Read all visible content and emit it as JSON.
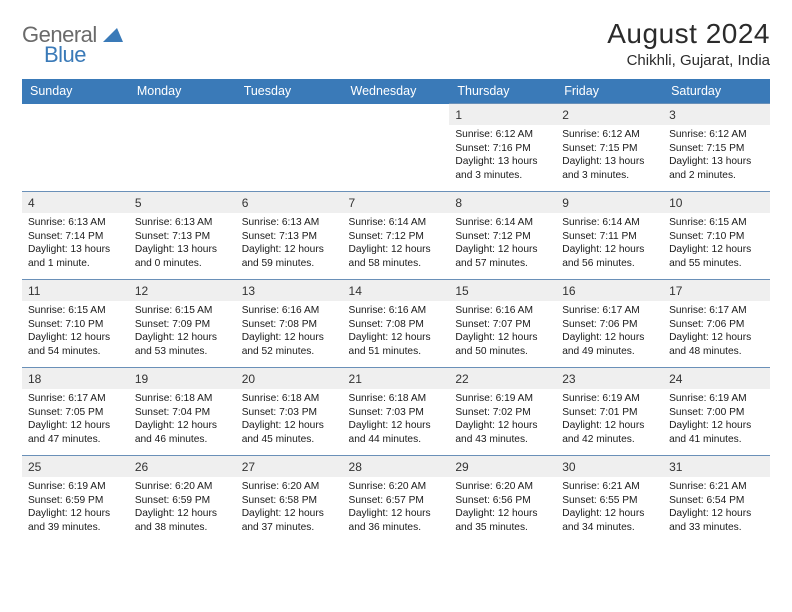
{
  "logo": {
    "general": "General",
    "blue": "Blue"
  },
  "title": "August 2024",
  "location": "Chikhli, Gujarat, India",
  "colors": {
    "header_bg": "#3a7ab8",
    "header_text": "#ffffff",
    "border": "#6a90b8",
    "daynum_bg": "#efefef",
    "logo_gray": "#6a6a6a",
    "logo_blue": "#3a7ab8"
  },
  "day_names": [
    "Sunday",
    "Monday",
    "Tuesday",
    "Wednesday",
    "Thursday",
    "Friday",
    "Saturday"
  ],
  "weeks": [
    [
      null,
      null,
      null,
      null,
      {
        "n": "1",
        "sr": "6:12 AM",
        "ss": "7:16 PM",
        "dl": "13 hours and 3 minutes."
      },
      {
        "n": "2",
        "sr": "6:12 AM",
        "ss": "7:15 PM",
        "dl": "13 hours and 3 minutes."
      },
      {
        "n": "3",
        "sr": "6:12 AM",
        "ss": "7:15 PM",
        "dl": "13 hours and 2 minutes."
      }
    ],
    [
      {
        "n": "4",
        "sr": "6:13 AM",
        "ss": "7:14 PM",
        "dl": "13 hours and 1 minute."
      },
      {
        "n": "5",
        "sr": "6:13 AM",
        "ss": "7:13 PM",
        "dl": "13 hours and 0 minutes."
      },
      {
        "n": "6",
        "sr": "6:13 AM",
        "ss": "7:13 PM",
        "dl": "12 hours and 59 minutes."
      },
      {
        "n": "7",
        "sr": "6:14 AM",
        "ss": "7:12 PM",
        "dl": "12 hours and 58 minutes."
      },
      {
        "n": "8",
        "sr": "6:14 AM",
        "ss": "7:12 PM",
        "dl": "12 hours and 57 minutes."
      },
      {
        "n": "9",
        "sr": "6:14 AM",
        "ss": "7:11 PM",
        "dl": "12 hours and 56 minutes."
      },
      {
        "n": "10",
        "sr": "6:15 AM",
        "ss": "7:10 PM",
        "dl": "12 hours and 55 minutes."
      }
    ],
    [
      {
        "n": "11",
        "sr": "6:15 AM",
        "ss": "7:10 PM",
        "dl": "12 hours and 54 minutes."
      },
      {
        "n": "12",
        "sr": "6:15 AM",
        "ss": "7:09 PM",
        "dl": "12 hours and 53 minutes."
      },
      {
        "n": "13",
        "sr": "6:16 AM",
        "ss": "7:08 PM",
        "dl": "12 hours and 52 minutes."
      },
      {
        "n": "14",
        "sr": "6:16 AM",
        "ss": "7:08 PM",
        "dl": "12 hours and 51 minutes."
      },
      {
        "n": "15",
        "sr": "6:16 AM",
        "ss": "7:07 PM",
        "dl": "12 hours and 50 minutes."
      },
      {
        "n": "16",
        "sr": "6:17 AM",
        "ss": "7:06 PM",
        "dl": "12 hours and 49 minutes."
      },
      {
        "n": "17",
        "sr": "6:17 AM",
        "ss": "7:06 PM",
        "dl": "12 hours and 48 minutes."
      }
    ],
    [
      {
        "n": "18",
        "sr": "6:17 AM",
        "ss": "7:05 PM",
        "dl": "12 hours and 47 minutes."
      },
      {
        "n": "19",
        "sr": "6:18 AM",
        "ss": "7:04 PM",
        "dl": "12 hours and 46 minutes."
      },
      {
        "n": "20",
        "sr": "6:18 AM",
        "ss": "7:03 PM",
        "dl": "12 hours and 45 minutes."
      },
      {
        "n": "21",
        "sr": "6:18 AM",
        "ss": "7:03 PM",
        "dl": "12 hours and 44 minutes."
      },
      {
        "n": "22",
        "sr": "6:19 AM",
        "ss": "7:02 PM",
        "dl": "12 hours and 43 minutes."
      },
      {
        "n": "23",
        "sr": "6:19 AM",
        "ss": "7:01 PM",
        "dl": "12 hours and 42 minutes."
      },
      {
        "n": "24",
        "sr": "6:19 AM",
        "ss": "7:00 PM",
        "dl": "12 hours and 41 minutes."
      }
    ],
    [
      {
        "n": "25",
        "sr": "6:19 AM",
        "ss": "6:59 PM",
        "dl": "12 hours and 39 minutes."
      },
      {
        "n": "26",
        "sr": "6:20 AM",
        "ss": "6:59 PM",
        "dl": "12 hours and 38 minutes."
      },
      {
        "n": "27",
        "sr": "6:20 AM",
        "ss": "6:58 PM",
        "dl": "12 hours and 37 minutes."
      },
      {
        "n": "28",
        "sr": "6:20 AM",
        "ss": "6:57 PM",
        "dl": "12 hours and 36 minutes."
      },
      {
        "n": "29",
        "sr": "6:20 AM",
        "ss": "6:56 PM",
        "dl": "12 hours and 35 minutes."
      },
      {
        "n": "30",
        "sr": "6:21 AM",
        "ss": "6:55 PM",
        "dl": "12 hours and 34 minutes."
      },
      {
        "n": "31",
        "sr": "6:21 AM",
        "ss": "6:54 PM",
        "dl": "12 hours and 33 minutes."
      }
    ]
  ]
}
